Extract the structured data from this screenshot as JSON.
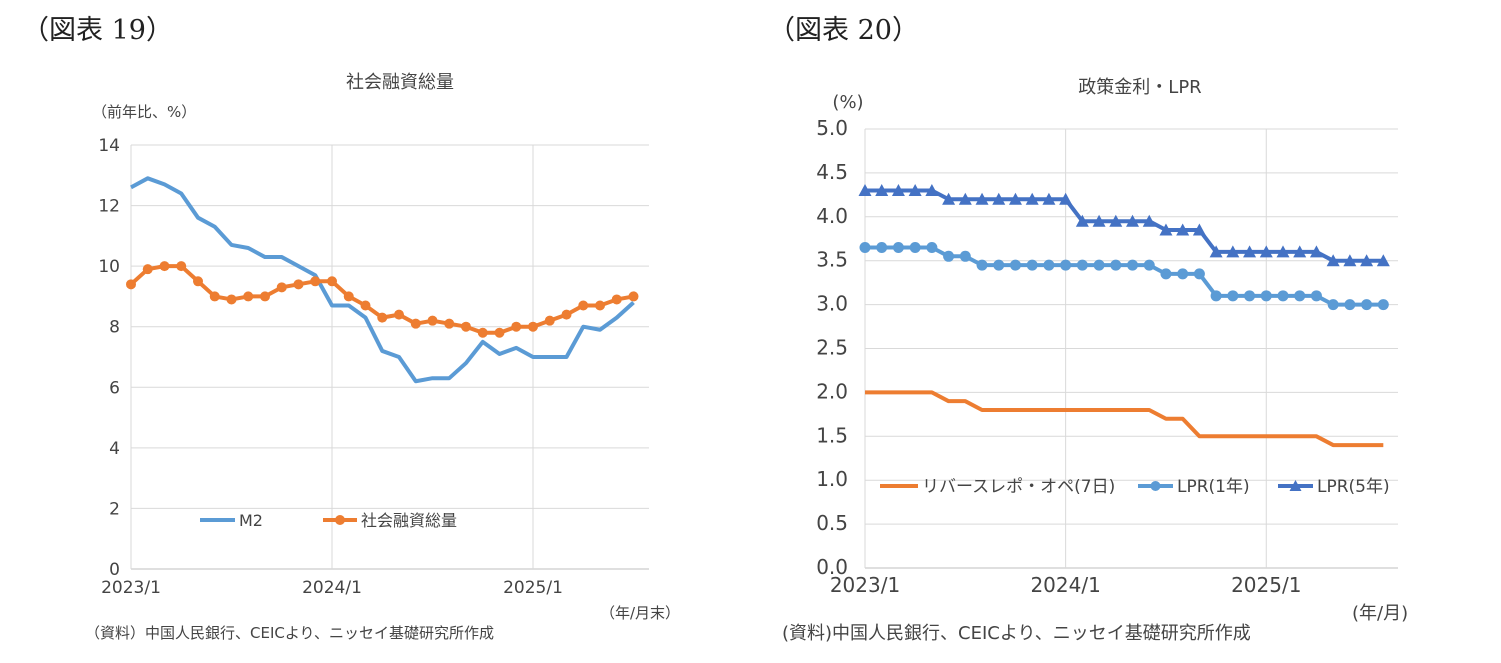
{
  "figures": [
    {
      "label": "（図表 19）"
    },
    {
      "label": "（図表 20）"
    }
  ],
  "chart_data": [
    {
      "type": "line",
      "title": "社会融資総量",
      "ylabel": "（前年比、%）",
      "xlabel": "（年/月末）",
      "source": "（資料）中国人民銀行、CEICより、ニッセイ基礎研究所作成",
      "x_start": "2023/1",
      "x_ticks": [
        "2023/1",
        "2024/1",
        "2025/1"
      ],
      "ylim": [
        0,
        14
      ],
      "y_ticks": [
        0,
        2,
        4,
        6,
        8,
        10,
        12,
        14
      ],
      "grid": true,
      "legend": "bottom-left",
      "series": [
        {
          "name": "M2",
          "color": "#5b9bd5",
          "marker": "none",
          "values": [
            12.6,
            12.9,
            12.7,
            12.4,
            11.6,
            11.3,
            10.7,
            10.6,
            10.3,
            10.3,
            10.0,
            9.7,
            8.7,
            8.7,
            8.3,
            7.2,
            7.0,
            6.2,
            6.3,
            6.3,
            6.8,
            7.5,
            7.1,
            7.3,
            7.0,
            7.0,
            7.0,
            8.0,
            7.9,
            8.3,
            8.8
          ]
        },
        {
          "name": "社会融資総量",
          "color": "#ed7d31",
          "marker": "circle",
          "values": [
            9.4,
            9.9,
            10.0,
            10.0,
            9.5,
            9.0,
            8.9,
            9.0,
            9.0,
            9.3,
            9.4,
            9.5,
            9.5,
            9.0,
            8.7,
            8.3,
            8.4,
            8.1,
            8.2,
            8.1,
            8.0,
            7.8,
            7.8,
            8.0,
            8.0,
            8.2,
            8.4,
            8.7,
            8.7,
            8.9,
            9.0
          ]
        }
      ]
    },
    {
      "type": "line",
      "title": "政策金利・LPR",
      "ylabel": "(%)",
      "xlabel": "(年/月)",
      "source": "(資料)中国人民銀行、CEICより、ニッセイ基礎研究所作成",
      "x_start": "2023/1",
      "x_ticks": [
        "2023/1",
        "2024/1",
        "2025/1"
      ],
      "ylim": [
        0,
        5
      ],
      "y_ticks": [
        "0.0",
        "0.5",
        "1.0",
        "1.5",
        "2.0",
        "2.5",
        "3.0",
        "3.5",
        "4.0",
        "4.5",
        "5.0"
      ],
      "grid": true,
      "legend": "bottom",
      "series": [
        {
          "name": "リバースレポ・オペ(7日)",
          "color": "#ed7d31",
          "marker": "none",
          "values": [
            2.0,
            2.0,
            2.0,
            2.0,
            2.0,
            1.9,
            1.9,
            1.8,
            1.8,
            1.8,
            1.8,
            1.8,
            1.8,
            1.8,
            1.8,
            1.8,
            1.8,
            1.8,
            1.7,
            1.7,
            1.5,
            1.5,
            1.5,
            1.5,
            1.5,
            1.5,
            1.5,
            1.5,
            1.4,
            1.4,
            1.4,
            1.4
          ]
        },
        {
          "name": "LPR(1年)",
          "color": "#5b9bd5",
          "marker": "circle",
          "values": [
            3.65,
            3.65,
            3.65,
            3.65,
            3.65,
            3.55,
            3.55,
            3.45,
            3.45,
            3.45,
            3.45,
            3.45,
            3.45,
            3.45,
            3.45,
            3.45,
            3.45,
            3.45,
            3.35,
            3.35,
            3.35,
            3.1,
            3.1,
            3.1,
            3.1,
            3.1,
            3.1,
            3.1,
            3.0,
            3.0,
            3.0,
            3.0
          ]
        },
        {
          "name": "LPR(5年)",
          "color": "#4472c4",
          "marker": "triangle",
          "values": [
            4.3,
            4.3,
            4.3,
            4.3,
            4.3,
            4.2,
            4.2,
            4.2,
            4.2,
            4.2,
            4.2,
            4.2,
            4.2,
            3.95,
            3.95,
            3.95,
            3.95,
            3.95,
            3.85,
            3.85,
            3.85,
            3.6,
            3.6,
            3.6,
            3.6,
            3.6,
            3.6,
            3.6,
            3.5,
            3.5,
            3.5,
            3.5
          ]
        }
      ]
    }
  ]
}
